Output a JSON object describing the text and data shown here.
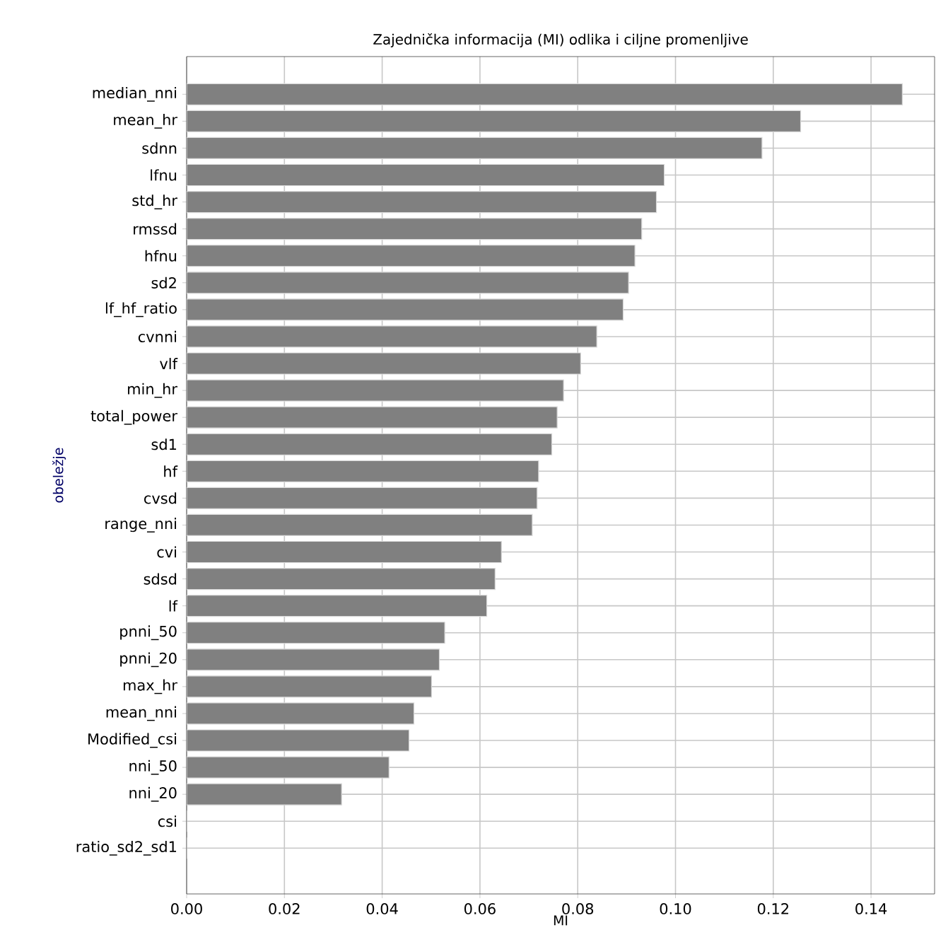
{
  "chart_data": {
    "type": "bar",
    "orientation": "horizontal",
    "title": "Zajednička informacija (MI) odlika i ciljne promenljive",
    "xlabel": "MI",
    "ylabel": "obeležje",
    "categories": [
      "median_nni",
      "mean_hr",
      "sdnn",
      "lfnu",
      "std_hr",
      "rmssd",
      "hfnu",
      "sd2",
      "lf_hf_ratio",
      "cvnni",
      "vlf",
      "min_hr",
      "total_power",
      "sd1",
      "hf",
      "cvsd",
      "range_nni",
      "cvi",
      "sdsd",
      "lf",
      "pnni_50",
      "pnni_20",
      "max_hr",
      "mean_nni",
      "Modified_csi",
      "nni_50",
      "nni_20",
      "csi",
      "ratio_sd2_sd1"
    ],
    "values": [
      0.1464,
      0.1256,
      0.1177,
      0.0977,
      0.0961,
      0.0931,
      0.0917,
      0.0904,
      0.0893,
      0.0839,
      0.0806,
      0.0771,
      0.0758,
      0.0747,
      0.072,
      0.0717,
      0.0707,
      0.0644,
      0.0631,
      0.0614,
      0.0528,
      0.0517,
      0.0501,
      0.0465,
      0.0455,
      0.0414,
      0.0317,
      0,
      0
    ],
    "color": "#808080",
    "xlim": [
      0,
      0.153
    ],
    "xticks": [
      {
        "value": 0,
        "label": "0.00"
      },
      {
        "value": 0.02,
        "label": "0.02"
      },
      {
        "value": 0.04,
        "label": "0.04"
      },
      {
        "value": 0.06,
        "label": "0.06"
      },
      {
        "value": 0.08,
        "label": "0.08"
      },
      {
        "value": 0.1,
        "label": "0.10"
      },
      {
        "value": 0.12,
        "label": "0.12"
      },
      {
        "value": 0.14,
        "label": "0.14"
      }
    ],
    "grid": true
  }
}
